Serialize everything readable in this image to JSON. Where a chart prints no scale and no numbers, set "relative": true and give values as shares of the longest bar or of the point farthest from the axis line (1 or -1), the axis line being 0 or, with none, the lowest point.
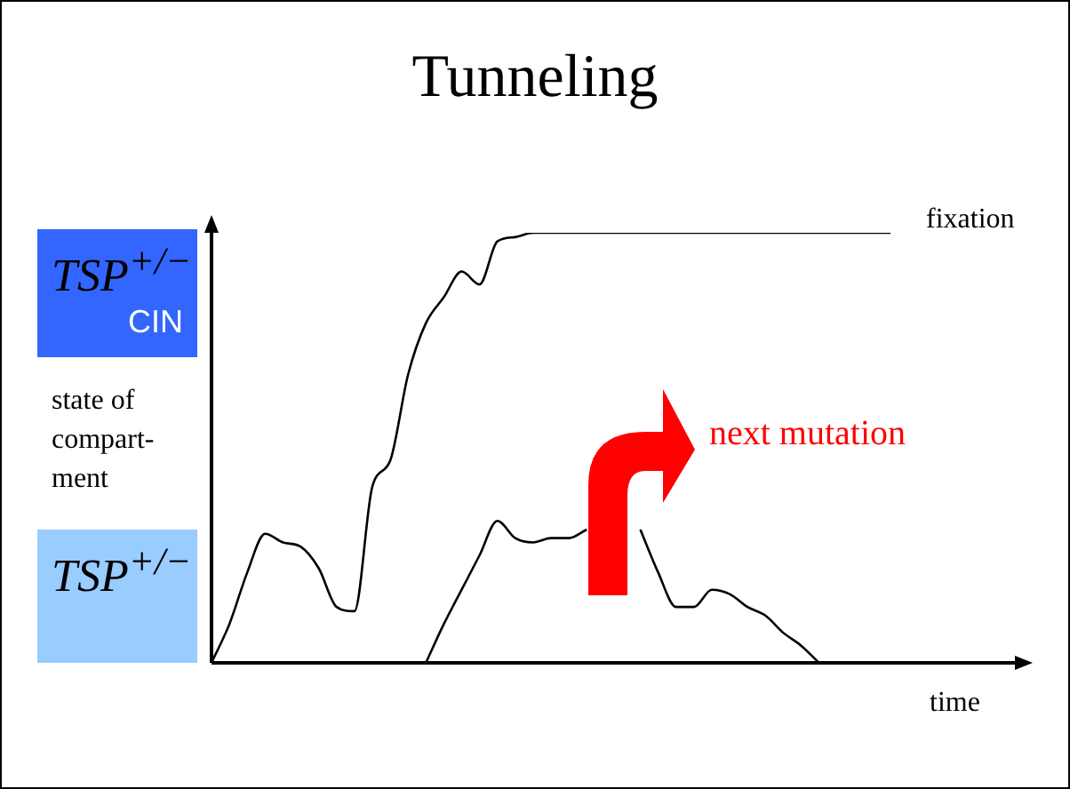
{
  "chart_data": {
    "type": "line",
    "title": "Tunneling",
    "xlabel": "time",
    "ylabel": "state of\ncompart-\nment",
    "relative": true,
    "marker": "none",
    "categories": [
      null,
      null,
      null,
      null,
      null,
      null,
      null,
      null,
      null,
      null,
      null,
      null,
      null,
      null,
      null,
      null,
      null,
      null,
      null,
      null,
      null,
      null,
      null,
      null,
      null,
      null,
      null,
      null,
      null,
      null,
      null,
      null,
      null,
      null,
      null,
      null,
      null,
      null,
      null
    ],
    "series": [
      {
        "color": "#000000",
        "values": [
          0,
          0.09,
          0.21,
          0.3,
          0.28,
          0.27,
          0.22,
          0.13,
          0.12,
          0.41,
          0.47,
          0.67,
          0.79,
          0.85,
          0.91,
          0.88,
          0.98,
          0.99,
          1,
          1,
          1,
          1,
          1,
          1,
          1,
          1,
          1,
          1,
          1,
          1,
          1,
          1,
          1,
          1,
          1,
          1,
          1,
          1,
          1
        ]
      },
      {
        "color": "#000000",
        "values": [
          null,
          null,
          null,
          null,
          null,
          null,
          null,
          null,
          null,
          null,
          null,
          null,
          0,
          0.09,
          0.17,
          0.25,
          0.33,
          0.29,
          0.28,
          0.29,
          0.29,
          0.31,
          null,
          null,
          0.31,
          0.21,
          0.13,
          0.13,
          0.17,
          0.16,
          0.13,
          0.11,
          0.07,
          0.04,
          0,
          null,
          null,
          null,
          null
        ]
      }
    ],
    "annotations": [
      "fixation",
      "next mutation",
      "TSP$^{+/−}$",
      "TSP$^{+/−}$\nCIN"
    ]
  }
}
